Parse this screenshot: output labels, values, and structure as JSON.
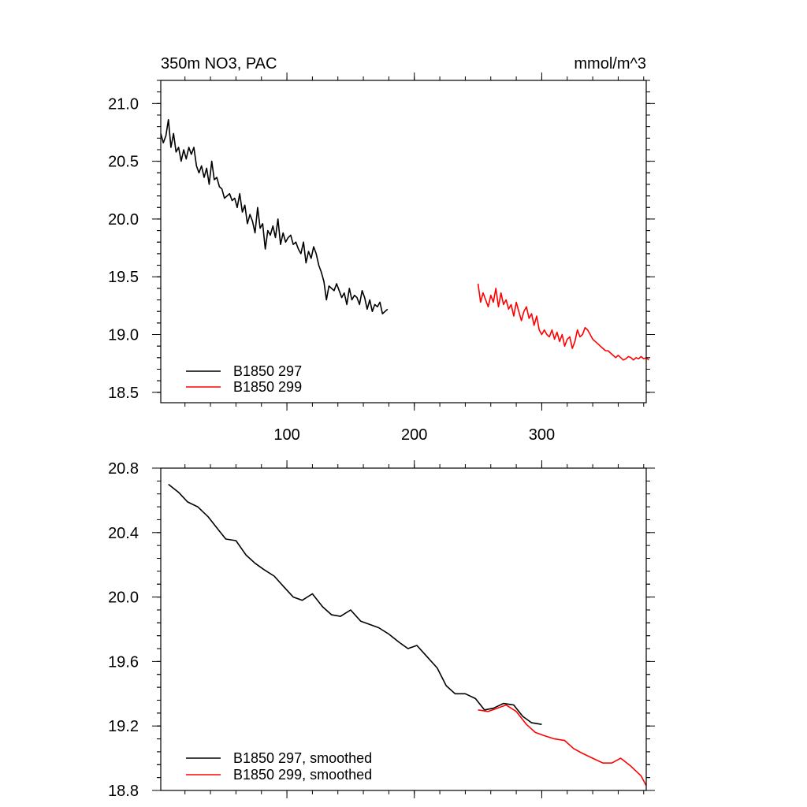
{
  "chart_data": [
    {
      "type": "line",
      "title_left": "350m NO3, PAC",
      "title_right": "mmol/m^3",
      "xlim": [
        1,
        382
      ],
      "ylim": [
        18.41,
        21.2
      ],
      "x_ticks": [
        100,
        200,
        300
      ],
      "x_tick_labels": [
        "100",
        "200",
        "300"
      ],
      "x_minor_step": 20,
      "y_ticks": [
        18.5,
        19.0,
        19.5,
        20.0,
        20.5,
        21.0
      ],
      "y_tick_labels": [
        "18.5",
        "19.0",
        "19.5",
        "20.0",
        "20.5",
        "21.0"
      ],
      "y_minor_step": 0.1,
      "series": [
        {
          "name": "B1850 297",
          "color": "#000000",
          "x_start": 1,
          "x_step": 2,
          "values": [
            20.74,
            20.66,
            20.72,
            20.86,
            20.62,
            20.74,
            20.58,
            20.62,
            20.5,
            20.6,
            20.52,
            20.62,
            20.56,
            20.62,
            20.46,
            20.4,
            20.46,
            20.36,
            20.44,
            20.3,
            20.5,
            20.34,
            20.36,
            20.28,
            20.26,
            20.18,
            20.2,
            20.22,
            20.16,
            20.18,
            20.1,
            20.22,
            20.06,
            20.12,
            19.96,
            20.04,
            19.98,
            19.88,
            20.1,
            19.92,
            19.96,
            19.74,
            19.9,
            19.86,
            19.94,
            19.84,
            20.0,
            19.78,
            19.88,
            19.8,
            19.84,
            19.86,
            19.78,
            19.8,
            19.74,
            19.7,
            19.8,
            19.62,
            19.72,
            19.66,
            19.76,
            19.7,
            19.6,
            19.54,
            19.46,
            19.3,
            19.42,
            19.4,
            19.38,
            19.44,
            19.38,
            19.32,
            19.36,
            19.26,
            19.4,
            19.3,
            19.34,
            19.32,
            19.26,
            19.38,
            19.32,
            19.22,
            19.3,
            19.2,
            19.26,
            19.24,
            19.28,
            19.18,
            19.2,
            19.22
          ]
        },
        {
          "name": "B1850 299",
          "color": "#ff0000",
          "x_start": 250,
          "x_step": 2,
          "values": [
            19.44,
            19.28,
            19.36,
            19.3,
            19.24,
            19.34,
            19.28,
            19.4,
            19.24,
            19.36,
            19.26,
            19.3,
            19.22,
            19.26,
            19.16,
            19.28,
            19.2,
            19.12,
            19.2,
            19.24,
            19.14,
            19.18,
            19.08,
            19.16,
            19.04,
            19.0,
            19.04,
            19.0,
            18.98,
            19.04,
            18.96,
            19.02,
            18.94,
            19.0,
            18.9,
            18.96,
            18.98,
            18.88,
            18.94,
            19.04,
            18.98,
            19.0,
            19.06,
            19.04,
            19.0,
            18.96,
            18.94,
            18.92,
            18.9,
            18.88,
            18.86,
            18.86,
            18.84,
            18.82,
            18.8,
            18.82,
            18.8,
            18.78,
            18.79,
            18.81,
            18.8,
            18.78,
            18.8,
            18.79,
            18.81,
            18.79,
            18.8,
            18.78
          ]
        }
      ],
      "legend": {
        "position": "bottom-left",
        "entries": [
          "B1850 297",
          "B1850 299"
        ]
      }
    },
    {
      "type": "line",
      "xlim": [
        1,
        382
      ],
      "ylim": [
        18.8,
        20.8
      ],
      "x_ticks": [
        100,
        200,
        300
      ],
      "x_minor_step": 20,
      "y_ticks": [
        18.8,
        19.2,
        19.6,
        20.0,
        20.4,
        20.8
      ],
      "y_tick_labels": [
        "18.8",
        "19.2",
        "19.6",
        "20.0",
        "20.4",
        "20.8"
      ],
      "y_minor_step": 0.08,
      "series": [
        {
          "name": "B1850 297, smoothed",
          "color": "#000000",
          "x": [
            7,
            15,
            22,
            30,
            38,
            45,
            52,
            60,
            68,
            75,
            82,
            90,
            98,
            105,
            112,
            120,
            128,
            135,
            142,
            150,
            158,
            165,
            172,
            180,
            188,
            195,
            202,
            210,
            218,
            225,
            232,
            240,
            248,
            255,
            262,
            270,
            278,
            285,
            292,
            300
          ],
          "y": [
            20.7,
            20.65,
            20.59,
            20.56,
            20.5,
            20.43,
            20.36,
            20.35,
            20.26,
            20.21,
            20.17,
            20.13,
            20.06,
            20.0,
            19.98,
            20.02,
            19.94,
            19.89,
            19.88,
            19.92,
            19.85,
            19.83,
            19.81,
            19.77,
            19.72,
            19.68,
            19.7,
            19.63,
            19.56,
            19.45,
            19.4,
            19.4,
            19.37,
            19.3,
            19.31,
            19.34,
            19.33,
            19.26,
            19.22,
            19.21
          ]
        },
        {
          "name": "B1850 299, smoothed",
          "color": "#ff0000",
          "x": [
            250,
            258,
            265,
            272,
            280,
            288,
            295,
            302,
            310,
            318,
            325,
            332,
            340,
            348,
            355,
            362,
            370,
            378,
            382
          ],
          "y": [
            19.3,
            19.29,
            19.31,
            19.33,
            19.29,
            19.21,
            19.16,
            19.14,
            19.12,
            19.11,
            19.06,
            19.03,
            19.0,
            18.97,
            18.97,
            19.0,
            18.95,
            18.89,
            18.83
          ]
        }
      ],
      "legend": {
        "position": "bottom-left",
        "entries": [
          "B1850 297, smoothed",
          "B1850 299, smoothed"
        ]
      }
    }
  ]
}
